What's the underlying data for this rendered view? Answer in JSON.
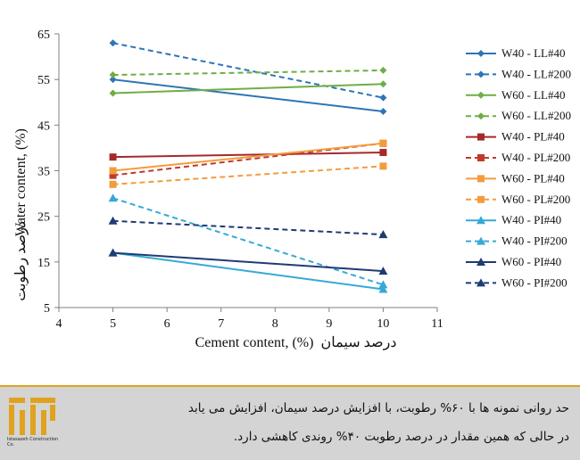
{
  "chart_data": {
    "type": "line",
    "xlabel": "Cement content, (%)",
    "xlabel_fa": "درصد سیمان",
    "ylabel": "Water content, (%)",
    "ylabel_fa": "درصد رطوبت",
    "xlim": [
      4,
      11
    ],
    "ylim": [
      5,
      65
    ],
    "xticks": [
      "4",
      "5",
      "6",
      "7",
      "8",
      "9",
      "10",
      "11"
    ],
    "yticks": [
      "5",
      "15",
      "25",
      "35",
      "45",
      "55",
      "65"
    ],
    "legend_position": "right",
    "grid": false,
    "series": [
      {
        "name": "W40 - LL#40",
        "x": [
          5,
          10
        ],
        "y": [
          55,
          48
        ],
        "color": "#2e75b6",
        "dash": false,
        "marker": "diamond"
      },
      {
        "name": "W40 - LL#200",
        "x": [
          5,
          10
        ],
        "y": [
          63,
          51
        ],
        "color": "#2e75b6",
        "dash": true,
        "marker": "diamond"
      },
      {
        "name": "W60 - LL#40",
        "x": [
          5,
          10
        ],
        "y": [
          52,
          54
        ],
        "color": "#70ad47",
        "dash": false,
        "marker": "diamond"
      },
      {
        "name": "W60 - LL#200",
        "x": [
          5,
          10
        ],
        "y": [
          56,
          57
        ],
        "color": "#70ad47",
        "dash": true,
        "marker": "diamond"
      },
      {
        "name": "W40 - PL#40",
        "x": [
          5,
          10
        ],
        "y": [
          38,
          39
        ],
        "color": "#a52a2a",
        "dash": false,
        "marker": "square"
      },
      {
        "name": "W40 - PL#200",
        "x": [
          5,
          10
        ],
        "y": [
          34,
          41
        ],
        "color": "#c0392b",
        "dash": true,
        "marker": "square"
      },
      {
        "name": "W60 - PL#40",
        "x": [
          5,
          10
        ],
        "y": [
          35,
          41
        ],
        "color": "#f39c3c",
        "dash": false,
        "marker": "square"
      },
      {
        "name": "W60 - PL#200",
        "x": [
          5,
          10
        ],
        "y": [
          32,
          36
        ],
        "color": "#f39c3c",
        "dash": true,
        "marker": "square"
      },
      {
        "name": "W40 - PI#40",
        "x": [
          5,
          10
        ],
        "y": [
          17,
          9
        ],
        "color": "#36a9d6",
        "dash": false,
        "marker": "triangle"
      },
      {
        "name": "W40 - PI#200",
        "x": [
          5,
          10
        ],
        "y": [
          29,
          10
        ],
        "color": "#36a9d6",
        "dash": true,
        "marker": "triangle"
      },
      {
        "name": "W60 - PI#40",
        "x": [
          5,
          10
        ],
        "y": [
          17,
          13
        ],
        "color": "#1f3b73",
        "dash": false,
        "marker": "triangle"
      },
      {
        "name": "W60 - PI#200",
        "x": [
          5,
          10
        ],
        "y": [
          24,
          21
        ],
        "color": "#1f3b73",
        "dash": true,
        "marker": "triangle"
      }
    ]
  },
  "caption": {
    "line1": "حد روانی نمونه ها با ۶۰% رطوبت، با افزایش درصد سیمان، افزایش می یابد",
    "line2": "در حالی که همین مقدار در درصد رطوبت ۴۰% روندی کاهشی دارد."
  },
  "logo": {
    "caption": "Istasazeh Construction Co.",
    "color": "#e0a21e"
  }
}
